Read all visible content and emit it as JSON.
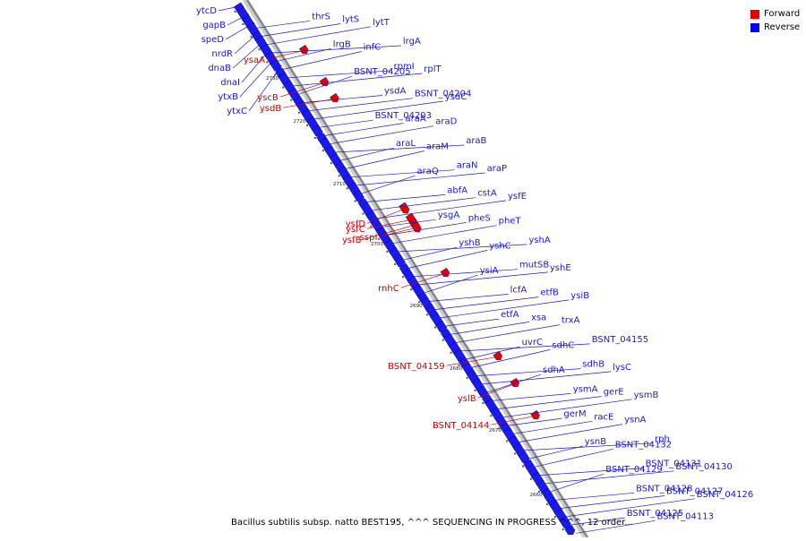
{
  "caption": "Bacillus subtilis subsp. natto BEST195, ^^^ SEQUENCING IN PROGRESS ^^^, 12 order...",
  "legend": [
    {
      "label": "Forward",
      "color": "#e60000"
    },
    {
      "label": "Reverse",
      "color": "#0000ff"
    }
  ],
  "colors": {
    "forward": "#e60000",
    "reverse": "#1a1aee",
    "backbone": "#888888",
    "label_reverse": "#1a1acc",
    "label_forward": "#cc0000"
  },
  "scale_ticks": [
    {
      "label": "2730 kbp",
      "t": 0.155
    },
    {
      "label": "2720 kbp",
      "t": 0.235
    },
    {
      "label": "2710 kbp",
      "t": 0.352
    },
    {
      "label": "2700 kbp",
      "t": 0.463
    },
    {
      "label": "2690 kbp",
      "t": 0.578
    },
    {
      "label": "2680 kbp",
      "t": 0.695
    },
    {
      "label": "2670 kbp",
      "t": 0.81
    },
    {
      "label": "2660 kbp",
      "t": 0.93
    }
  ],
  "reverse_genes": [
    {
      "label": "thrS"
    },
    {
      "label": "lytS"
    },
    {
      "label": "lytT"
    },
    {
      "label": "lrgA"
    },
    {
      "label": "lrgB"
    },
    {
      "label": "infC"
    },
    {
      "label": "rpmI"
    },
    {
      "label": "rplT"
    },
    {
      "label": "BSNT_04205"
    },
    {
      "label": "ysdA"
    },
    {
      "label": "BSNT_04204"
    },
    {
      "label": "ysdC"
    },
    {
      "label": "BSNT_04203"
    },
    {
      "label": "araA"
    },
    {
      "label": "araD"
    },
    {
      "label": "araB"
    },
    {
      "label": "araL"
    },
    {
      "label": "araM"
    },
    {
      "label": "araN"
    },
    {
      "label": "araP"
    },
    {
      "label": "araQ"
    },
    {
      "label": "abfA"
    },
    {
      "label": "cstA"
    },
    {
      "label": "ysfE"
    },
    {
      "label": "ysgA"
    },
    {
      "label": "pheS"
    },
    {
      "label": "pheT"
    },
    {
      "label": "yshA"
    },
    {
      "label": "yshB"
    },
    {
      "label": "yshC"
    },
    {
      "label": "mutSB"
    },
    {
      "label": "yshE"
    },
    {
      "label": "ysiA"
    },
    {
      "label": "lcfA"
    },
    {
      "label": "etfB"
    },
    {
      "label": "ysiB"
    },
    {
      "label": "etfA"
    },
    {
      "label": "xsa"
    },
    {
      "label": "trxA"
    },
    {
      "label": "BSNT_04155"
    },
    {
      "label": "uvrC"
    },
    {
      "label": "sdhC"
    },
    {
      "label": "sdhB"
    },
    {
      "label": "lysC"
    },
    {
      "label": "sdhA"
    },
    {
      "label": "ysmA"
    },
    {
      "label": "gerE"
    },
    {
      "label": "ysmB"
    },
    {
      "label": "gerM"
    },
    {
      "label": "racE"
    },
    {
      "label": "ysnA"
    },
    {
      "label": "rph"
    },
    {
      "label": "ysnB"
    },
    {
      "label": "BSNT_04132"
    },
    {
      "label": "BSNT_04131"
    },
    {
      "label": "BSNT_04130"
    },
    {
      "label": "BSNT_04129"
    },
    {
      "label": "BSNT_04128"
    },
    {
      "label": "BSNT_04127"
    },
    {
      "label": "BSNT_04126"
    },
    {
      "label": "BSNT_04125"
    },
    {
      "label": "BSNT_04113"
    }
  ],
  "left_reverse_labels": [
    {
      "label": "ytcD"
    },
    {
      "label": "gapB"
    },
    {
      "label": "speD"
    },
    {
      "label": "nrdR"
    },
    {
      "label": "dnaB"
    },
    {
      "label": "dnaI"
    },
    {
      "label": "ytxB"
    },
    {
      "label": "ytxC"
    }
  ],
  "forward_genes": [
    {
      "label": "ysaA"
    },
    {
      "label": "yscB"
    },
    {
      "label": "ysdB"
    },
    {
      "label": "ysfD"
    },
    {
      "label": "ysfC"
    },
    {
      "label": "ysfB"
    },
    {
      "label": "sspI"
    },
    {
      "label": "rnhC"
    },
    {
      "label": "BSNT_04159"
    },
    {
      "label": "yslB"
    },
    {
      "label": "BSNT_04144"
    }
  ]
}
